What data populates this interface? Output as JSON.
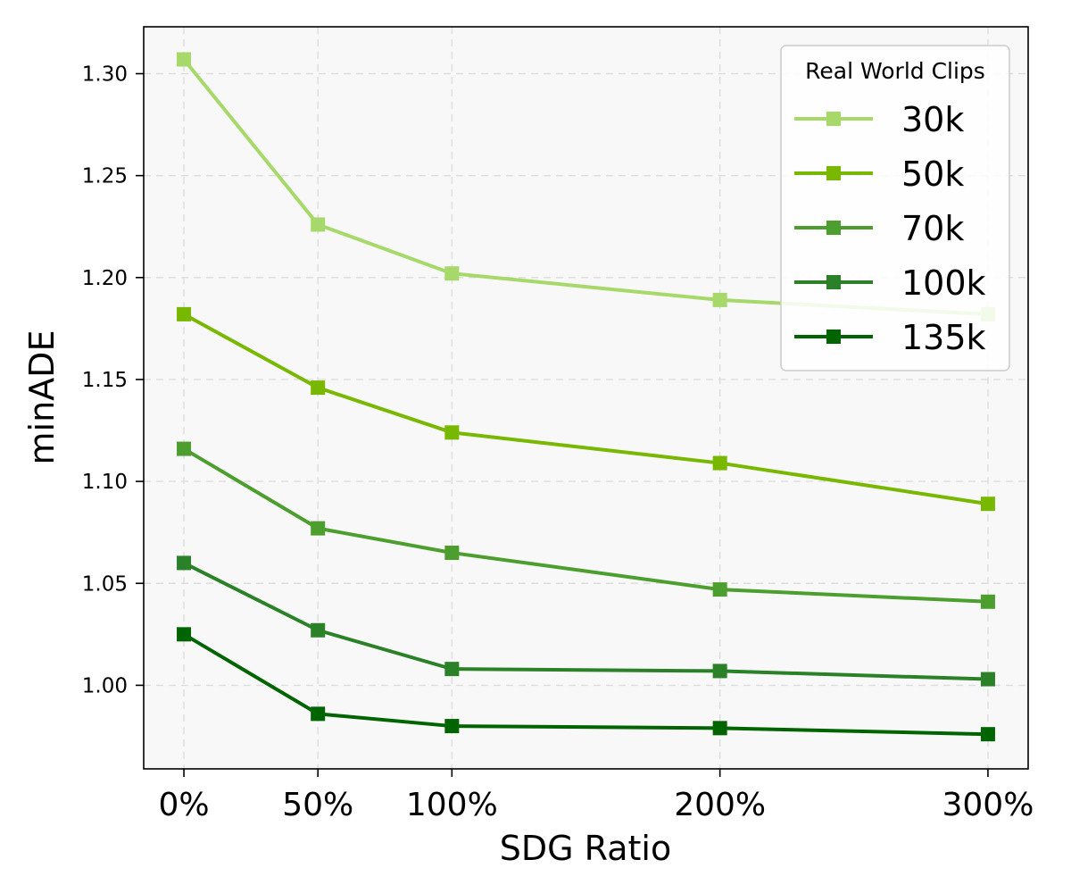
{
  "chart_data": {
    "type": "line",
    "title": "",
    "xlabel": "SDG Ratio",
    "ylabel": "minADE",
    "x": [
      0,
      50,
      100,
      200,
      300
    ],
    "x_tick_labels": [
      "0%",
      "50%",
      "100%",
      "200%",
      "300%"
    ],
    "xlim": [
      -15,
      315
    ],
    "ylim": [
      0.959,
      1.323
    ],
    "y_ticks": [
      1.0,
      1.05,
      1.1,
      1.15,
      1.2,
      1.25,
      1.3
    ],
    "y_tick_labels": [
      "1.00",
      "1.05",
      "1.10",
      "1.15",
      "1.20",
      "1.25",
      "1.30"
    ],
    "grid": true,
    "legend": {
      "title": "Real World Clips",
      "placement": "top-right"
    },
    "series": [
      {
        "name": "30k",
        "color": "#a6d96a",
        "values": [
          1.307,
          1.226,
          1.202,
          1.189,
          1.182
        ]
      },
      {
        "name": "50k",
        "color": "#78b800",
        "values": [
          1.182,
          1.146,
          1.124,
          1.109,
          1.089
        ]
      },
      {
        "name": "70k",
        "color": "#4c9f2e",
        "values": [
          1.116,
          1.077,
          1.065,
          1.047,
          1.041
        ]
      },
      {
        "name": "100k",
        "color": "#2a8128",
        "values": [
          1.06,
          1.027,
          1.008,
          1.007,
          1.003
        ]
      },
      {
        "name": "135k",
        "color": "#006400",
        "values": [
          1.025,
          0.986,
          0.98,
          0.979,
          0.976
        ]
      }
    ]
  }
}
